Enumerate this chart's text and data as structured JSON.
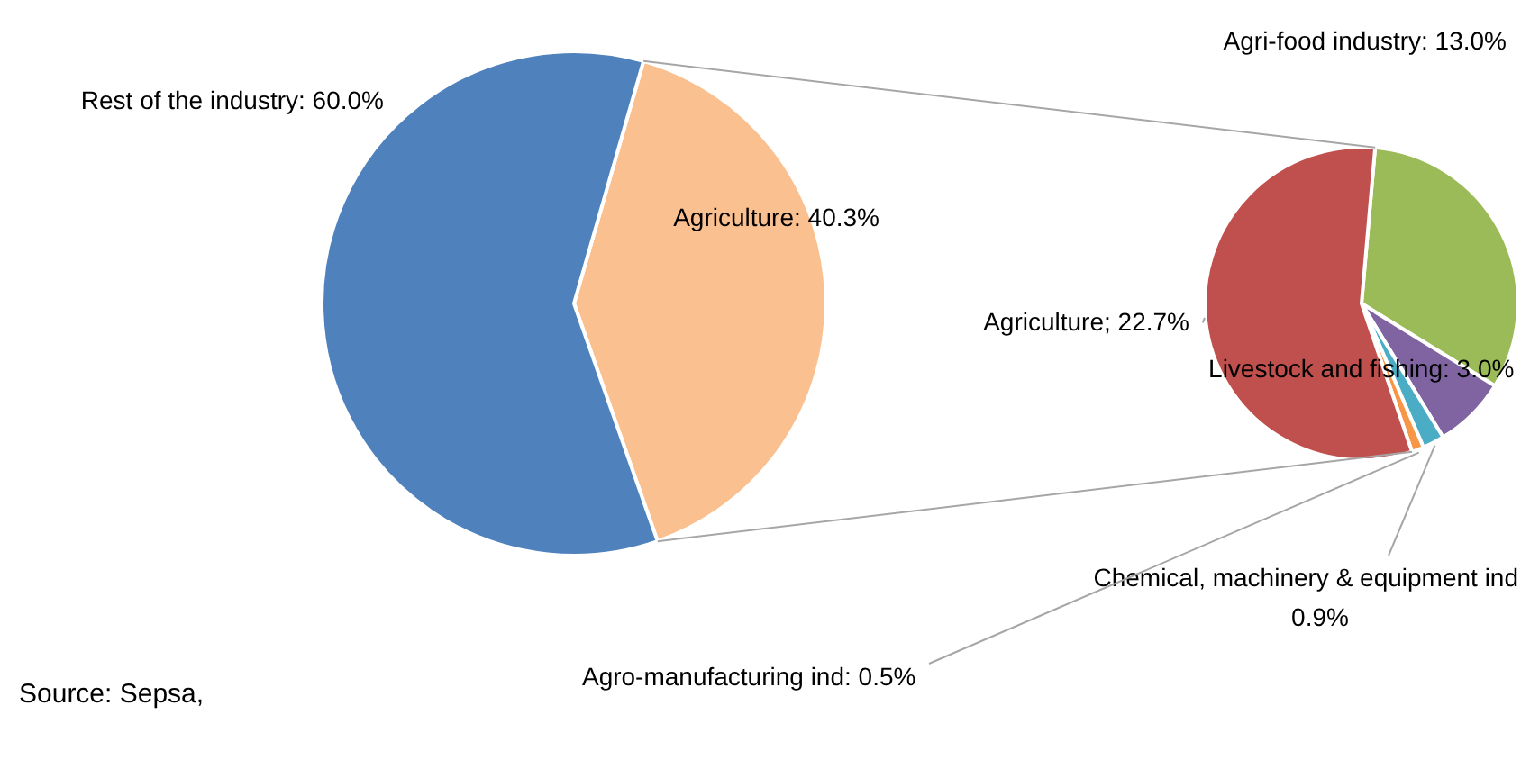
{
  "chart_data": [
    {
      "type": "pie",
      "categories": [
        "Agriculture",
        "Rest of the industry"
      ],
      "values": [
        40.3,
        60.0
      ],
      "colors": [
        "#fac090",
        "#4f81bd"
      ],
      "value_labels": [
        ": 40.3%",
        ": 60.0%"
      ],
      "annotations": [
        "Source: Sepsa,"
      ]
    },
    {
      "type": "pie",
      "categories": [
        "Agri-food industry",
        "Livestock and fishing",
        "Chemical, machinery & equipment ind",
        "Agro-manufacturing ind",
        "Agriculture"
      ],
      "values": [
        13.0,
        3.0,
        0.9,
        0.5,
        22.7
      ],
      "colors": [
        "#9bbb59",
        "#8064a2",
        "#4bacc6",
        "#f79646",
        "#c0504d"
      ],
      "value_labels": [
        ": 13.0%",
        ": 3.0%",
        "0.9%",
        ": 0.5%",
        "; 22.7%"
      ]
    }
  ]
}
